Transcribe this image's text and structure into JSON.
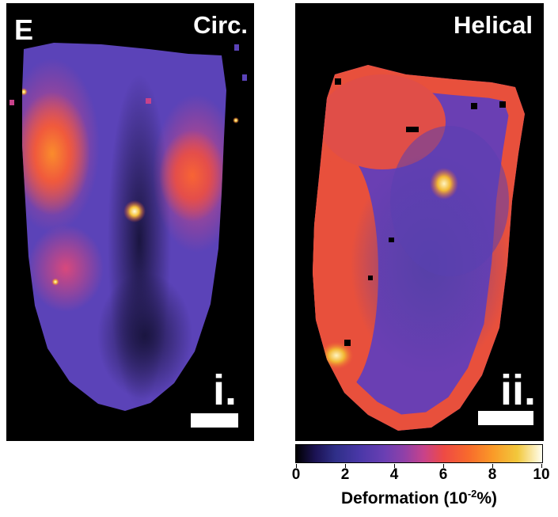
{
  "figure": {
    "panel_letter": "E",
    "panels": [
      {
        "title": "Circ.",
        "label": "i."
      },
      {
        "title": "Helical",
        "label": "ii."
      }
    ]
  },
  "colorbar": {
    "ticks": [
      "0",
      "2",
      "4",
      "6",
      "8",
      "10"
    ],
    "label_prefix": "Deformation (10",
    "label_exponent": "-2",
    "label_suffix": "%)",
    "colormap": [
      "#000000",
      "#2f2f88",
      "#6a3fb3",
      "#c8428a",
      "#f86a2c",
      "#f2c83c",
      "#fffef0"
    ]
  }
}
